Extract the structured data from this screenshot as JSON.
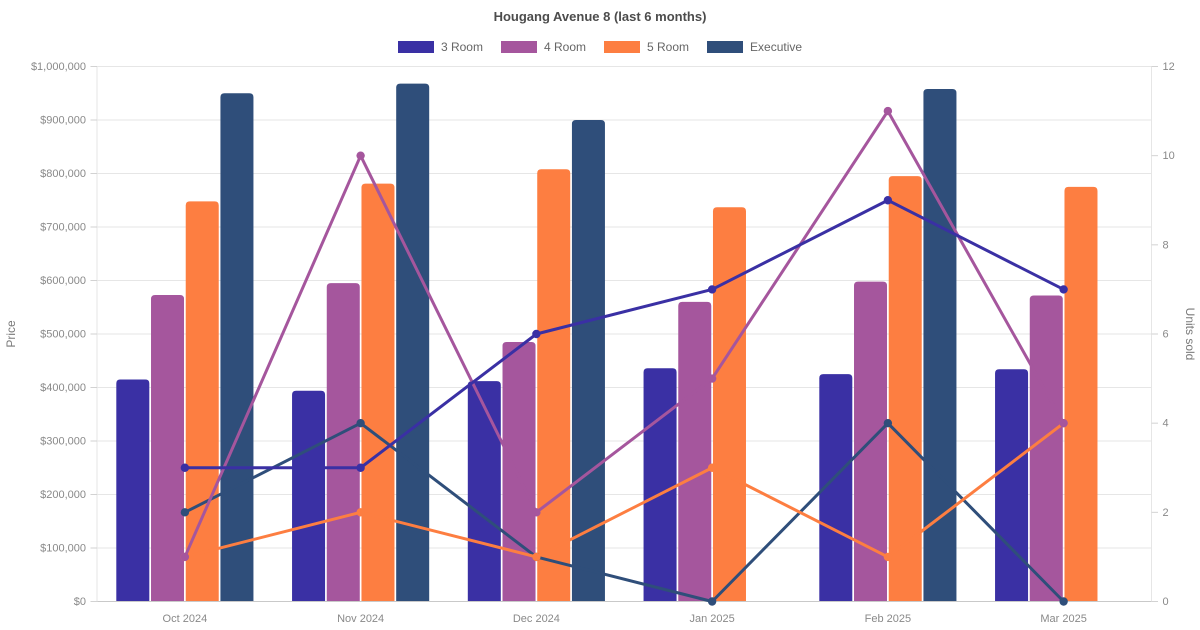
{
  "chart_data": {
    "type": "mixed-bar-line",
    "title": "Hougang Avenue 8 (last 6 months)",
    "categories": [
      "Oct 2024",
      "Nov 2024",
      "Dec 2024",
      "Jan 2025",
      "Feb 2025",
      "Mar 2025"
    ],
    "series": [
      {
        "name": "3 Room",
        "color": "#3A30A4",
        "prices": [
          415000,
          394000,
          412000,
          436000,
          425000,
          434000
        ],
        "units_sold": [
          3,
          3,
          6,
          7,
          9,
          7
        ]
      },
      {
        "name": "4 Room",
        "color": "#A5569D",
        "prices": [
          573000,
          595000,
          485000,
          560000,
          598000,
          572000
        ],
        "units_sold": [
          1,
          10,
          2,
          5,
          11,
          4
        ]
      },
      {
        "name": "5 Room",
        "color": "#FD7E41",
        "prices": [
          748000,
          781000,
          808000,
          737000,
          795000,
          775000
        ],
        "units_sold": [
          1,
          2,
          1,
          3,
          1,
          4
        ]
      },
      {
        "name": "Executive",
        "color": "#2F4E7A",
        "prices": [
          950000,
          968000,
          900000,
          null,
          958000,
          null
        ],
        "units_sold": [
          2,
          4,
          1,
          0,
          4,
          0
        ]
      }
    ],
    "left_axis": {
      "title": "Price",
      "min": 0,
      "max": 1000000,
      "step": 100000,
      "tick_labels": [
        "$0",
        "$100,000",
        "$200,000",
        "$300,000",
        "$400,000",
        "$500,000",
        "$600,000",
        "$700,000",
        "$800,000",
        "$900,000",
        "$1,000,000"
      ]
    },
    "right_axis": {
      "title": "Units sold",
      "min": 0,
      "max": 12,
      "step": 2,
      "tick_labels": [
        "0",
        "2",
        "4",
        "6",
        "8",
        "10",
        "12"
      ]
    },
    "grid": true,
    "legend_position": "top",
    "colors": {
      "grid_line": "#e6e6e6",
      "baseline": "#c9c9c9",
      "tick_mark": "#d2d2d2"
    }
  }
}
